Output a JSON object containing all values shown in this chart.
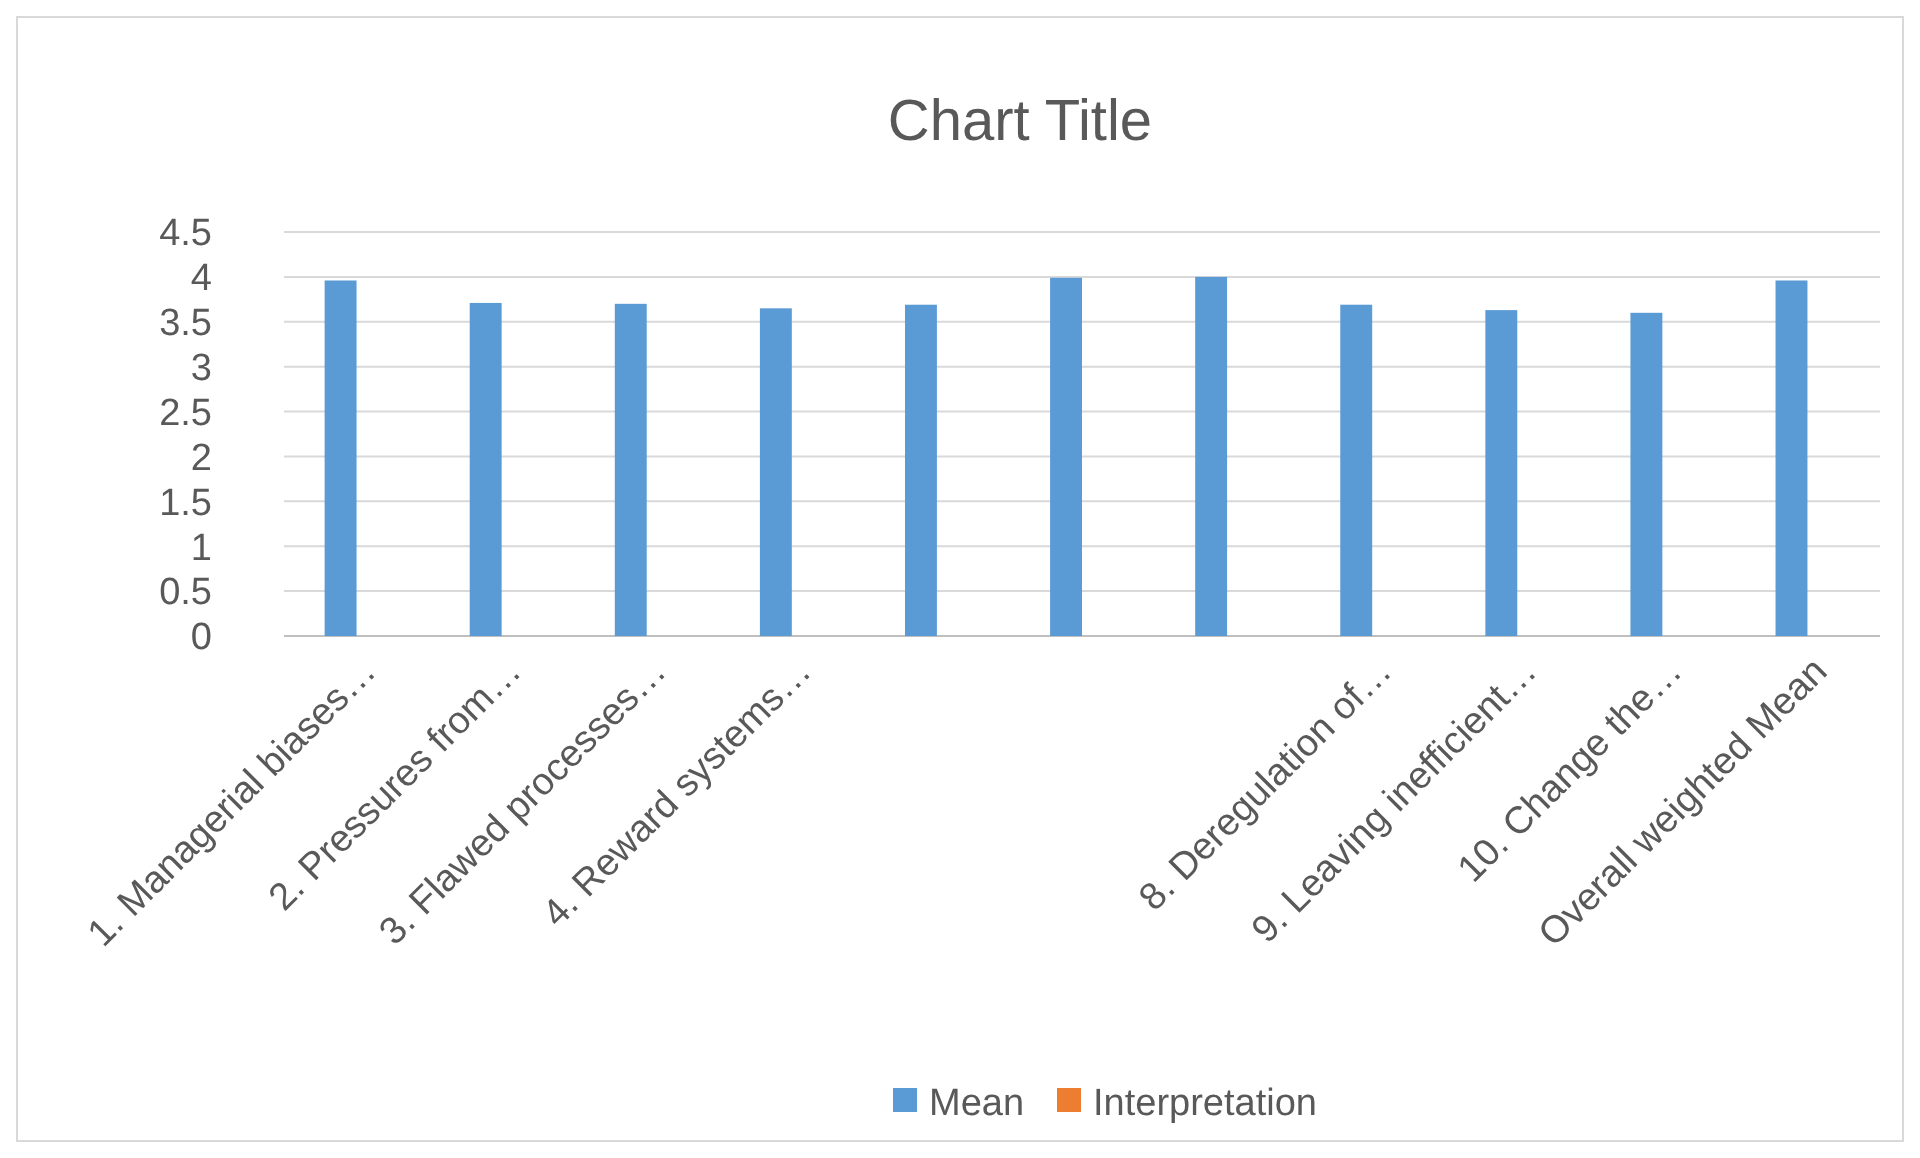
{
  "chart_data": {
    "type": "bar",
    "title": "Chart Title",
    "categories": [
      "1.  Managerial biases…",
      "2.  Pressures from…",
      "3.  Flawed processes…",
      "4.  Reward systems…",
      null,
      null,
      null,
      "8.  Deregulation of…",
      "9.  Leaving inefficient…",
      "10.   Change the…",
      "Overall weighted Mean"
    ],
    "series": [
      {
        "name": "Mean",
        "color": "#5b9bd5",
        "values": [
          3.96,
          3.71,
          3.7,
          3.65,
          3.69,
          3.99,
          4.0,
          3.69,
          3.63,
          3.6,
          3.96
        ]
      },
      {
        "name": "Interpretation",
        "color": "#ed7d31",
        "values": [
          null,
          null,
          null,
          null,
          null,
          null,
          null,
          null,
          null,
          null,
          null
        ]
      }
    ],
    "ylim": [
      0,
      4.5
    ],
    "yticks": [
      0,
      0.5,
      1,
      1.5,
      2,
      2.5,
      3,
      3.5,
      4,
      4.5
    ],
    "grid": "y",
    "legend": "bottom"
  }
}
